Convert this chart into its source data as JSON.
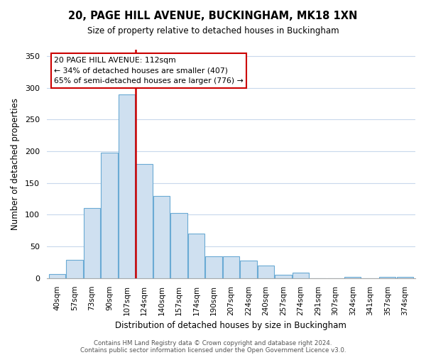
{
  "title": "20, PAGE HILL AVENUE, BUCKINGHAM, MK18 1XN",
  "subtitle": "Size of property relative to detached houses in Buckingham",
  "xlabel": "Distribution of detached houses by size in Buckingham",
  "ylabel": "Number of detached properties",
  "bar_labels": [
    "40sqm",
    "57sqm",
    "73sqm",
    "90sqm",
    "107sqm",
    "124sqm",
    "140sqm",
    "157sqm",
    "174sqm",
    "190sqm",
    "207sqm",
    "224sqm",
    "240sqm",
    "257sqm",
    "274sqm",
    "291sqm",
    "307sqm",
    "324sqm",
    "341sqm",
    "357sqm",
    "374sqm"
  ],
  "bar_values": [
    6,
    29,
    111,
    198,
    289,
    180,
    130,
    103,
    70,
    35,
    35,
    28,
    20,
    5,
    9,
    0,
    0,
    2,
    0,
    2,
    2
  ],
  "bar_color": "#cfe0f0",
  "bar_edge_color": "#6aaad4",
  "vline_x": 4.5,
  "vline_color": "#cc0000",
  "ylim": [
    0,
    360
  ],
  "yticks": [
    0,
    50,
    100,
    150,
    200,
    250,
    300,
    350
  ],
  "annotation_title": "20 PAGE HILL AVENUE: 112sqm",
  "annotation_line1": "← 34% of detached houses are smaller (407)",
  "annotation_line2": "65% of semi-detached houses are larger (776) →",
  "footer_line1": "Contains HM Land Registry data © Crown copyright and database right 2024.",
  "footer_line2": "Contains public sector information licensed under the Open Government Licence v3.0.",
  "background_color": "#ffffff",
  "grid_color": "#c8d8ec"
}
